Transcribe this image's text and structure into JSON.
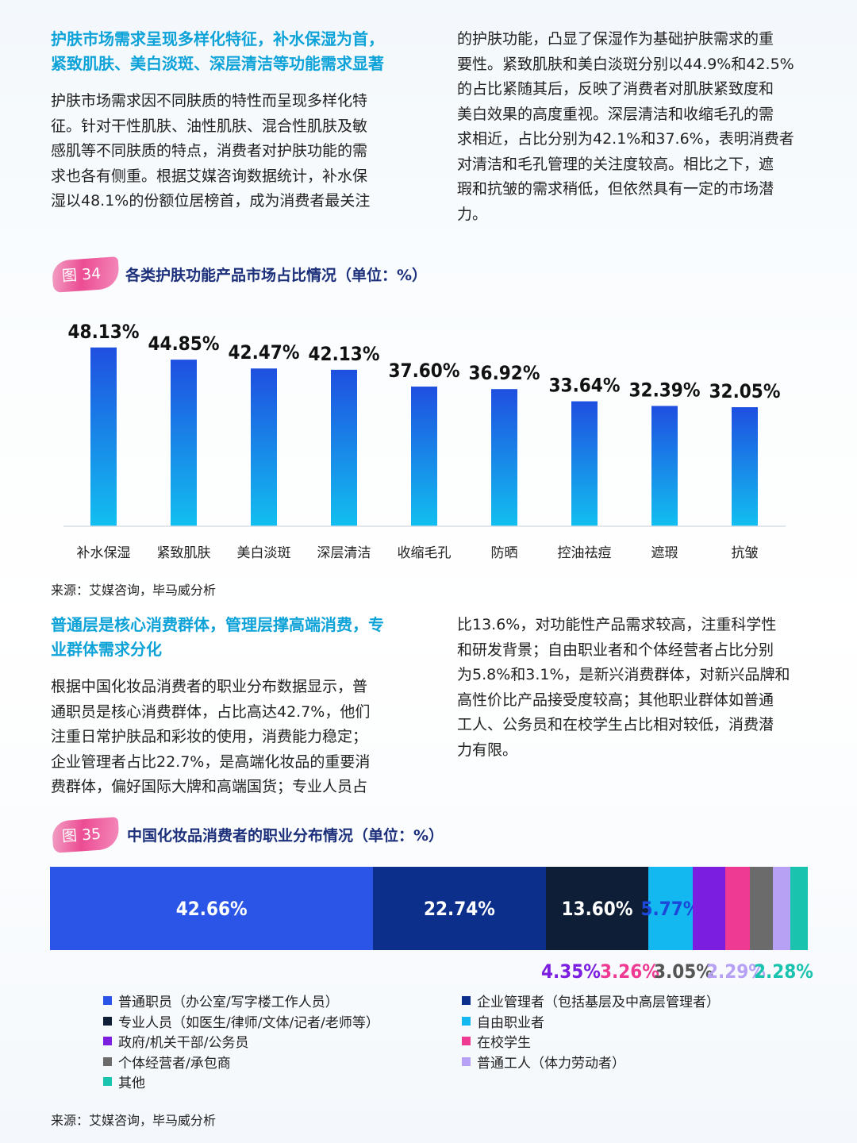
{
  "section1": {
    "heading_line1": "护肤市场需求呈现多样化特征，补水保湿为首，",
    "heading_line2": "紧致肌肤、美白淡斑、深层清洁等功能需求显著",
    "left_lines": [
      "护肤市场需求因不同肤质的特性而呈现多样化特",
      "征。针对干性肌肤、油性肌肤、混合性肌肤及敏",
      "感肌等不同肤质的特点，消费者对护肤功能的需",
      "求也各有侧重。根据艾媒咨询数据统计，补水保",
      "湿以48.1%的份额位居榜首，成为消费者最关注"
    ],
    "right_lines": [
      "的护肤功能，凸显了保湿作为基础护肤需求的重",
      "要性。紧致肌肤和美白淡斑分别以44.9%和42.5%",
      "的占比紧随其后，反映了消费者对肌肤紧致度和",
      "美白效果的高度重视。深层清洁和收缩毛孔的需",
      "求相近，占比分别为42.1%和37.6%，表明消费者",
      "对清洁和毛孔管理的关注度较高。相比之下，遮",
      "瑕和抗皱的需求稍低，但依然具有一定的市场潜",
      "力。"
    ]
  },
  "figure34": {
    "badge": "图 34",
    "title": "各类护肤功能产品市场占比情况（单位：%）",
    "source": "来源：艾媒咨询，毕马威分析"
  },
  "chart_data": [
    {
      "type": "bar",
      "categories": [
        "补水保湿",
        "紧致肌肤",
        "美白淡斑",
        "深层清洁",
        "收缩毛孔",
        "防晒",
        "控油祛痘",
        "遮瑕",
        "抗皱"
      ],
      "values": [
        48.13,
        44.85,
        42.47,
        42.13,
        37.6,
        36.92,
        33.64,
        32.39,
        32.05
      ],
      "value_labels": [
        "48.13%",
        "44.85%",
        "42.47%",
        "42.13%",
        "37.60%",
        "36.92%",
        "33.64%",
        "32.39%",
        "32.05%"
      ],
      "ylim": [
        0,
        50
      ],
      "grid": false,
      "colors": {
        "bar_top": "#1f4fe0",
        "bar_bottom": "#12bff0"
      }
    },
    {
      "type": "bar",
      "stacked": true,
      "orientation": "horizontal",
      "categories": [
        "普通职员（办公室/写字楼工作人员）",
        "企业管理者（包括基层及中高层管理者）",
        "专业人员（如医生/律师/文体/记者/老师等）",
        "自由职业者",
        "政府/机关干部/公务员",
        "在校学生",
        "个体经营者/承包商",
        "普通工人（体力劳动者）",
        "其他"
      ],
      "values": [
        42.66,
        22.74,
        13.6,
        5.77,
        4.35,
        3.26,
        3.05,
        2.29,
        2.28
      ],
      "value_labels": [
        "42.66%",
        "22.74%",
        "13.60%",
        "5.77%",
        "4.35%",
        "3.26%",
        "3.05%",
        "2.29%",
        "2.28%"
      ],
      "colors": [
        "#2a55e6",
        "#0c2f8c",
        "#0e1e36",
        "#13b8f0",
        "#7b1ee0",
        "#ef3a94",
        "#6b6b6b",
        "#b7a1f5",
        "#19c3ae"
      ],
      "legend_position": "bottom"
    }
  ],
  "section2": {
    "heading_line1": "普通层是核心消费群体，管理层撑高端消费，专",
    "heading_line2": "业群体需求分化",
    "left_lines": [
      "根据中国化妆品消费者的职业分布数据显示，普",
      "通职员是核心消费群体，占比高达42.7%，他们",
      "注重日常护肤品和彩妆的使用，消费能力稳定；",
      "企业管理者占比22.7%，是高端化妆品的重要消",
      "费群体，偏好国际大牌和高端国货；专业人员占"
    ],
    "right_lines": [
      "比13.6%，对功能性产品需求较高，注重科学性",
      "和研发背景；自由职业者和个体经营者占比分别",
      "为5.8%和3.1%，是新兴消费群体，对新兴品牌和",
      "高性价比产品接受度较高；其他职业群体如普通",
      "工人、公务员和在校学生占比相对较低，消费潜",
      "力有限。"
    ]
  },
  "figure35": {
    "badge": "图 35",
    "title": "中国化妆品消费者的职业分布情况（单位：%）",
    "source": "来源：艾媒咨询，毕马威分析"
  }
}
